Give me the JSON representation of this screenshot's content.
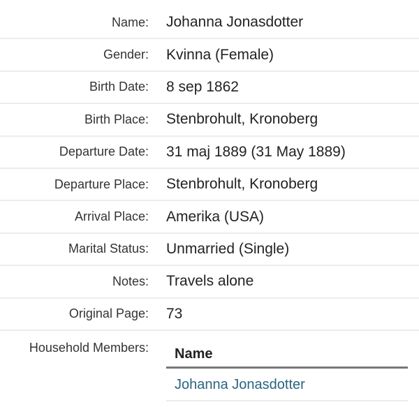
{
  "fields": [
    {
      "label": "Name:",
      "value": "Johanna Jonasdotter"
    },
    {
      "label": "Gender:",
      "value": "Kvinna (Female)"
    },
    {
      "label": "Birth Date:",
      "value": "8 sep 1862"
    },
    {
      "label": "Birth Place:",
      "value": "Stenbrohult, Kronoberg"
    },
    {
      "label": "Departure Date:",
      "value": "31 maj 1889 (31 May 1889)"
    },
    {
      "label": "Departure Place:",
      "value": "Stenbrohult, Kronoberg"
    },
    {
      "label": "Arrival Place:",
      "value": "Amerika (USA)"
    },
    {
      "label": "Marital Status:",
      "value": "Unmarried (Single)"
    },
    {
      "label": "Notes:",
      "value": "Travels alone"
    },
    {
      "label": "Original Page:",
      "value": "73"
    }
  ],
  "household": {
    "label": "Household Members:",
    "column_header": "Name",
    "members": [
      "Johanna Jonasdotter"
    ],
    "link_color": "#2a6480"
  }
}
